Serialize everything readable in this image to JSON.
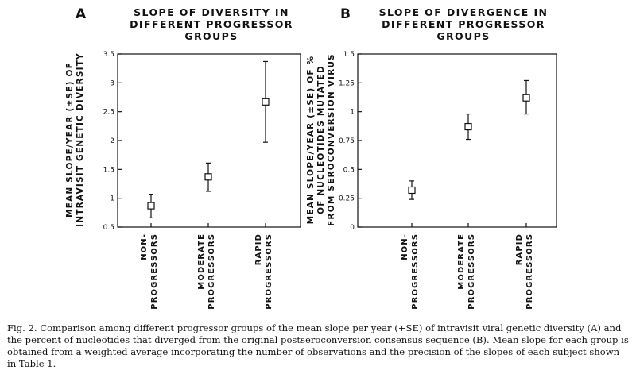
{
  "chart_data": [
    {
      "type": "scatter",
      "panel": "A",
      "title_lines": [
        "SLOPE OF DIVERSITY IN",
        "DIFFERENT PROGRESSOR",
        "GROUPS"
      ],
      "ylabel_lines": [
        "MEAN SLOPE/YEAR (±SE) OF",
        "INTRAVISIT GENETIC DIVERSITY"
      ],
      "categories": [
        [
          "NON-",
          "PROGRESSORS"
        ],
        [
          "MODERATE",
          "PROGRESSORS"
        ],
        [
          "RAPID",
          "PROGRESSORS"
        ]
      ],
      "yticks": [
        "0.5",
        "1",
        "1.5",
        "2",
        "2.5",
        "3",
        "3.5"
      ],
      "ylim": [
        0.5,
        3.5
      ],
      "values": [
        0.87,
        1.37,
        2.67
      ],
      "err_low": [
        0.66,
        1.12,
        1.97
      ],
      "err_high": [
        1.07,
        1.61,
        3.37
      ]
    },
    {
      "type": "scatter",
      "panel": "B",
      "title_lines": [
        "SLOPE OF DIVERGENCE IN",
        "DIFFERENT PROGRESSOR",
        "GROUPS"
      ],
      "ylabel_lines": [
        "MEAN SLOPE/YEAR (±SE) OF %",
        "OF NUCLEOTIDES MUTATED",
        "FROM SEROCONVERSION VIRUS"
      ],
      "categories": [
        [
          "NON-",
          "PROGRESSORS"
        ],
        [
          "MODERATE",
          "PROGRESSORS"
        ],
        [
          "RAPID",
          "PROGRESSORS"
        ]
      ],
      "yticks": [
        "0",
        "0.25",
        "0.5",
        "0.75",
        "1",
        "1.25",
        "1.5"
      ],
      "ylim": [
        0,
        1.5
      ],
      "values": [
        0.32,
        0.87,
        1.12
      ],
      "err_low": [
        0.24,
        0.76,
        0.98
      ],
      "err_high": [
        0.4,
        0.98,
        1.27
      ]
    }
  ],
  "caption": {
    "label": "Fig. 2.",
    "text": "Comparison among different progressor groups of the mean slope per year (+SE) of intravisit viral genetic diversity (A) and the percent of nucleotides that diverged from the original postseroconversion consensus sequence (B). Mean slope for each group is obtained from a weighted average incorporating the number of observations and the precision of the slopes of each subject shown in Table 1."
  },
  "style": {
    "ink": "#111111",
    "background": "#ffffff"
  }
}
